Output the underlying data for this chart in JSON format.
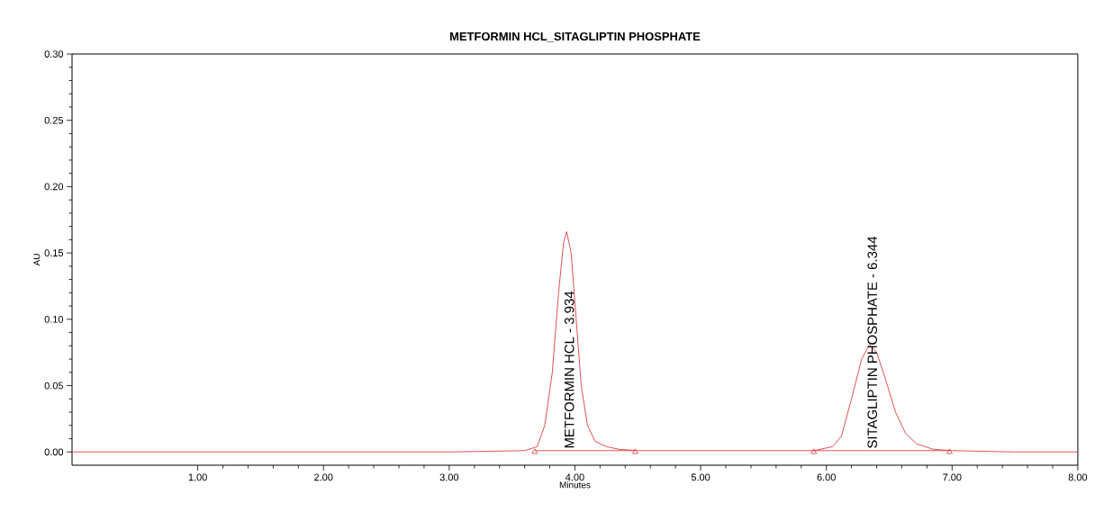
{
  "chart_data": {
    "type": "line",
    "title": "METFORMIN HCL_SITAGLIPTIN PHOSPHATE",
    "xlabel": "Minutes",
    "ylabel": "AU",
    "xlim": [
      0,
      8
    ],
    "ylim": [
      -0.01,
      0.3
    ],
    "xticks": [
      {
        "value": 1,
        "label": "1.00"
      },
      {
        "value": 2,
        "label": "2.00"
      },
      {
        "value": 3,
        "label": "3.00"
      },
      {
        "value": 4,
        "label": "4.00"
      },
      {
        "value": 5,
        "label": "5.00"
      },
      {
        "value": 6,
        "label": "6.00"
      },
      {
        "value": 7,
        "label": "7.00"
      },
      {
        "value": 8,
        "label": "8.00"
      }
    ],
    "yticks": [
      {
        "value": 0,
        "label": "0.00"
      },
      {
        "value": 0.05,
        "label": "0.05"
      },
      {
        "value": 0.1,
        "label": "0.10"
      },
      {
        "value": 0.15,
        "label": "0.15"
      },
      {
        "value": 0.2,
        "label": "0.20"
      },
      {
        "value": 0.25,
        "label": "0.25"
      },
      {
        "value": 0.3,
        "label": "0.30"
      }
    ],
    "grid": false,
    "series": [
      {
        "color": "#e03c3c",
        "x": [
          0,
          1.3,
          2.0,
          3.0,
          3.6,
          3.7,
          3.76,
          3.82,
          3.87,
          3.91,
          3.934,
          3.97,
          4.01,
          4.05,
          4.1,
          4.16,
          4.25,
          4.35,
          4.5,
          5.0,
          5.9,
          6.05,
          6.12,
          6.2,
          6.28,
          6.344,
          6.4,
          6.47,
          6.55,
          6.63,
          6.72,
          6.85,
          7.0,
          7.5,
          8.0
        ],
        "values": [
          0,
          0,
          0,
          0,
          0.001,
          0.004,
          0.02,
          0.06,
          0.12,
          0.158,
          0.166,
          0.15,
          0.1,
          0.05,
          0.02,
          0.008,
          0.004,
          0.002,
          0.001,
          0.001,
          0.001,
          0.004,
          0.012,
          0.04,
          0.07,
          0.081,
          0.075,
          0.055,
          0.03,
          0.014,
          0.006,
          0.002,
          0.001,
          0,
          0
        ]
      },
      {
        "color": "#e03c3c",
        "x": [
          3.68,
          4.48,
          5.2,
          5.9,
          6.98
        ],
        "values": [
          0.001,
          0.001,
          null,
          0.001,
          0.001
        ]
      },
      {
        "type": "scatter",
        "marker": "triangle",
        "color": "#e03c3c",
        "x": [
          3.68,
          4.48,
          5.9,
          6.98
        ],
        "values": [
          0,
          0,
          0,
          0
        ]
      }
    ],
    "annotations": [
      {
        "text": "METFORMIN HCL - 3.934",
        "x": 3.934,
        "y": 0.001
      },
      {
        "text": "SITAGLIPTIN PHOSPHATE - 6.344",
        "x": 6.344,
        "y": 0.001
      }
    ]
  }
}
